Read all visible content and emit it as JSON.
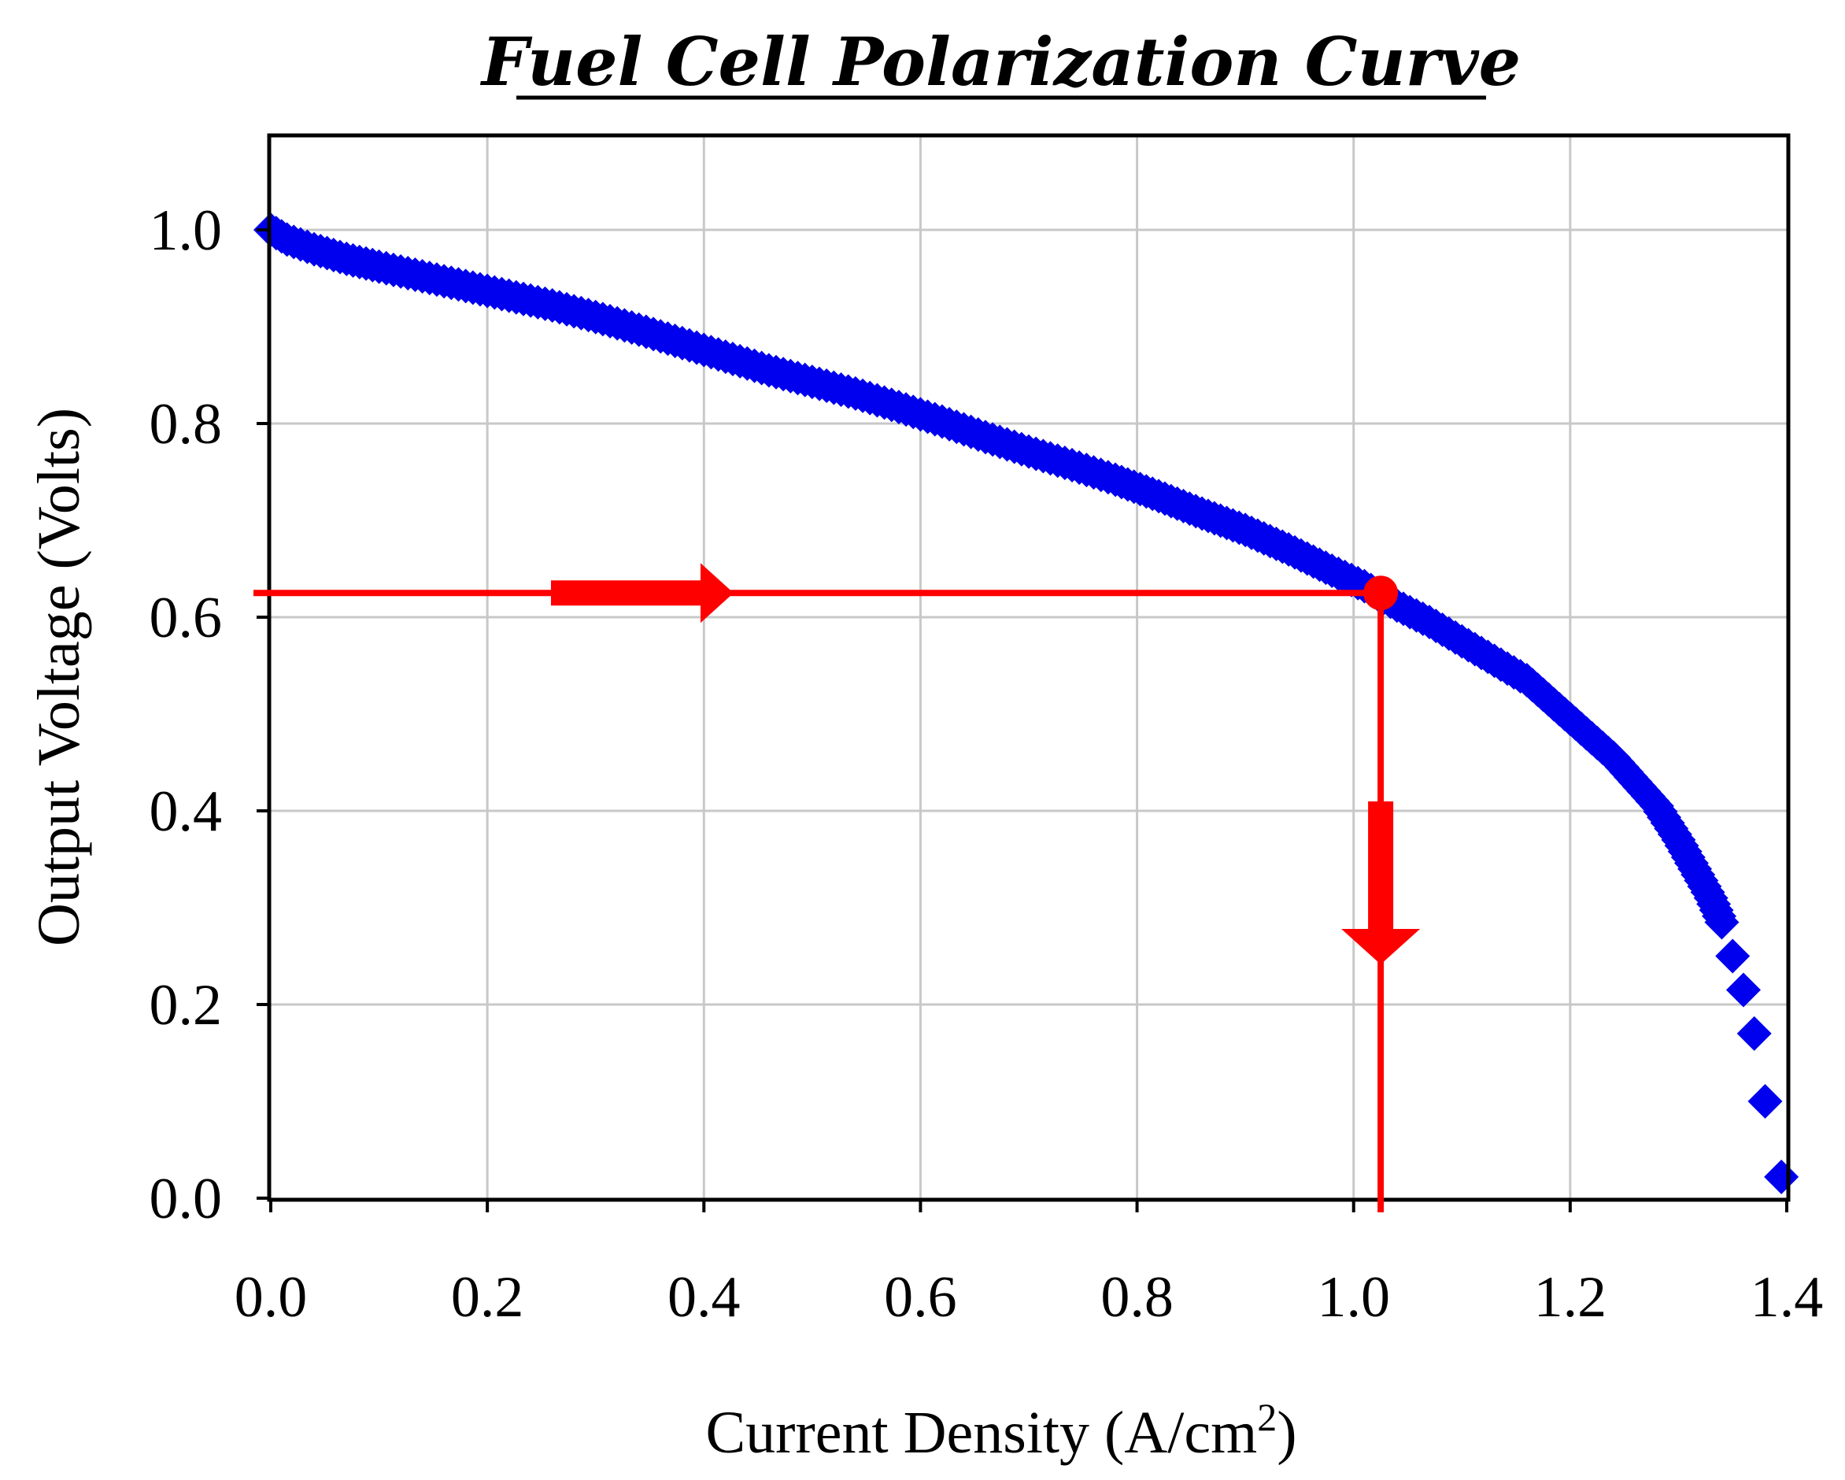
{
  "chart_data": {
    "type": "scatter",
    "title": "Fuel Cell Polarization Curve",
    "xlabel": "Current Density (A/cm",
    "xlabel_sup": "2",
    "xlabel_end": ")",
    "ylabel": "Output Voltage (Volts)",
    "xlim": [
      0.0,
      1.4
    ],
    "ylim": [
      0.0,
      1.1
    ],
    "xticks": [
      "0.0",
      "0.2",
      "0.4",
      "0.6",
      "0.8",
      "1.0",
      "1.2",
      "1.4"
    ],
    "yticks": [
      "0.0",
      "0.2",
      "0.4",
      "0.6",
      "0.8",
      "1.0"
    ],
    "grid": true,
    "series_color": "#0000ee",
    "marker": "diamond",
    "points": [
      [
        0.0,
        1.0
      ],
      [
        0.015,
        0.99
      ],
      [
        0.04,
        0.98
      ],
      [
        0.07,
        0.97
      ],
      [
        0.1,
        0.962
      ],
      [
        0.14,
        0.952
      ],
      [
        0.18,
        0.942
      ],
      [
        0.22,
        0.932
      ],
      [
        0.26,
        0.922
      ],
      [
        0.3,
        0.91
      ],
      [
        0.34,
        0.897
      ],
      [
        0.38,
        0.883
      ],
      [
        0.42,
        0.869
      ],
      [
        0.46,
        0.855
      ],
      [
        0.5,
        0.843
      ],
      [
        0.54,
        0.831
      ],
      [
        0.58,
        0.817
      ],
      [
        0.62,
        0.802
      ],
      [
        0.66,
        0.786
      ],
      [
        0.7,
        0.771
      ],
      [
        0.74,
        0.757
      ],
      [
        0.78,
        0.742
      ],
      [
        0.82,
        0.725
      ],
      [
        0.86,
        0.707
      ],
      [
        0.9,
        0.69
      ],
      [
        0.94,
        0.67
      ],
      [
        0.98,
        0.648
      ],
      [
        1.01,
        0.632
      ],
      [
        1.04,
        0.612
      ],
      [
        1.07,
        0.595
      ],
      [
        1.1,
        0.575
      ],
      [
        1.13,
        0.555
      ],
      [
        1.16,
        0.535
      ],
      [
        1.18,
        0.515
      ],
      [
        1.2,
        0.495
      ],
      [
        1.22,
        0.475
      ],
      [
        1.24,
        0.455
      ],
      [
        1.26,
        0.43
      ],
      [
        1.28,
        0.405
      ],
      [
        1.3,
        0.37
      ],
      [
        1.315,
        0.34
      ],
      [
        1.33,
        0.31
      ],
      [
        1.34,
        0.285
      ],
      [
        1.35,
        0.25
      ],
      [
        1.36,
        0.215
      ],
      [
        1.37,
        0.17
      ],
      [
        1.38,
        0.1
      ],
      [
        1.395,
        0.022
      ]
    ],
    "annotation": {
      "operating_point": {
        "x": 1.025,
        "y": 0.625
      },
      "color": "#ff0000"
    }
  }
}
